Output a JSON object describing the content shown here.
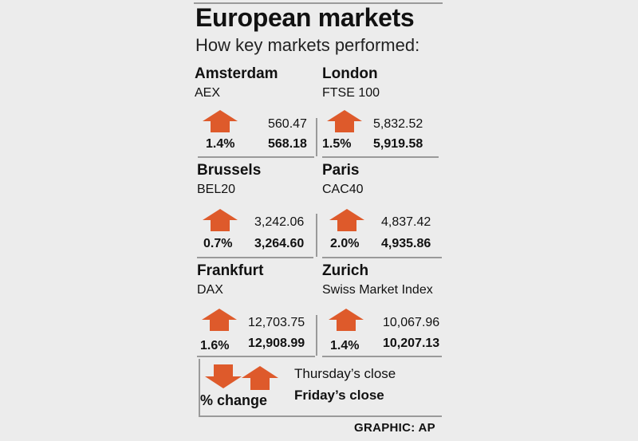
{
  "title": "European markets",
  "subtitle": "How key markets performed:",
  "colors": {
    "arrow": "#de5a2b",
    "rule": "#9a9a9a",
    "background": "#ececec"
  },
  "markets": [
    {
      "city": "Amsterdam",
      "index": "AEX",
      "direction": "up",
      "change": "1.4%",
      "thursday_close": "560.47",
      "friday_close": "568.18"
    },
    {
      "city": "London",
      "index": "FTSE 100",
      "direction": "up",
      "change": "1.5%",
      "thursday_close": "5,832.52",
      "friday_close": "5,919.58"
    },
    {
      "city": "Brussels",
      "index": "BEL20",
      "direction": "up",
      "change": "0.7%",
      "thursday_close": "3,242.06",
      "friday_close": "3,264.60"
    },
    {
      "city": "Paris",
      "index": "CAC40",
      "direction": "up",
      "change": "2.0%",
      "thursday_close": "4,837.42",
      "friday_close": "4,935.86"
    },
    {
      "city": "Frankfurt",
      "index": "DAX",
      "direction": "up",
      "change": "1.6%",
      "thursday_close": "12,703.75",
      "friday_close": "12,908.99"
    },
    {
      "city": "Zurich",
      "index": "Swiss Market Index",
      "direction": "up",
      "change": "1.4%",
      "thursday_close": "10,067.96",
      "friday_close": "10,207.13"
    }
  ],
  "legend": {
    "percent_label": "% change",
    "thursday_label": "Thursday’s close",
    "friday_label": "Friday’s close",
    "down_icon": "arrow-down-icon",
    "up_icon": "arrow-up-icon"
  },
  "credit": "GRAPHIC: AP"
}
